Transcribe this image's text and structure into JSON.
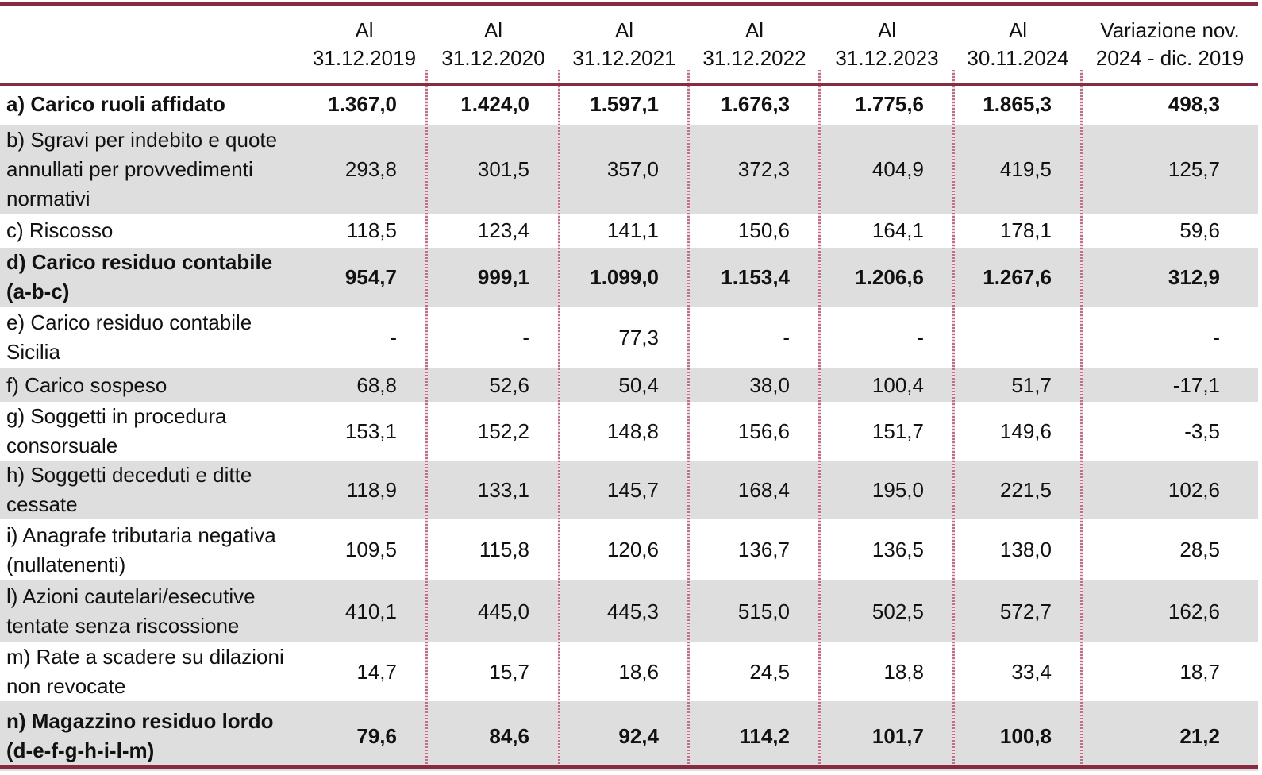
{
  "colors": {
    "maroon": "#862b42",
    "divider_pink": "#bc7089",
    "row_shade": "#dedede",
    "text": "#111111"
  },
  "table": {
    "header": {
      "columns": [
        {
          "line1": "",
          "line2": ""
        },
        {
          "line1": "Al",
          "line2": "31.12.2019"
        },
        {
          "line1": "Al",
          "line2": "31.12.2020"
        },
        {
          "line1": "Al",
          "line2": "31.12.2021"
        },
        {
          "line1": "Al",
          "line2": "31.12.2022"
        },
        {
          "line1": "Al",
          "line2": "31.12.2023"
        },
        {
          "line1": "Al",
          "line2": "30.11.2024"
        },
        {
          "line1": "Variazione nov.",
          "line2": "2024 - dic. 2019"
        }
      ]
    },
    "rows": [
      {
        "label": "a) Carico ruoli affidato",
        "bold": true,
        "shaded": false,
        "values": [
          "1.367,0",
          "1.424,0",
          "1.597,1",
          "1.676,3",
          "1.775,6",
          "1.865,3",
          "498,3"
        ]
      },
      {
        "label": "b) Sgravi per indebito e quote annullati per provvedimenti normativi",
        "bold": false,
        "shaded": true,
        "values": [
          "293,8",
          "301,5",
          "357,0",
          "372,3",
          "404,9",
          "419,5",
          "125,7"
        ]
      },
      {
        "label": "c) Riscosso",
        "bold": false,
        "shaded": false,
        "values": [
          "118,5",
          "123,4",
          "141,1",
          "150,6",
          "164,1",
          "178,1",
          "59,6"
        ]
      },
      {
        "label": "d) Carico residuo contabile (a-b-c)",
        "bold": true,
        "shaded": true,
        "values": [
          "954,7",
          "999,1",
          "1.099,0",
          "1.153,4",
          "1.206,6",
          "1.267,6",
          "312,9"
        ]
      },
      {
        "label": "e) Carico residuo contabile Sicilia",
        "bold": false,
        "shaded": false,
        "values": [
          "-",
          "-",
          "77,3",
          "-",
          "-",
          "",
          "-"
        ]
      },
      {
        "label": "f) Carico sospeso",
        "bold": false,
        "shaded": true,
        "values": [
          "68,8",
          "52,6",
          "50,4",
          "38,0",
          "100,4",
          "51,7",
          "-17,1"
        ]
      },
      {
        "label": "g) Soggetti in procedura consorsuale",
        "bold": false,
        "shaded": false,
        "values": [
          "153,1",
          "152,2",
          "148,8",
          "156,6",
          "151,7",
          "149,6",
          "-3,5"
        ]
      },
      {
        "label": "h) Soggetti deceduti e ditte cessate",
        "bold": false,
        "shaded": true,
        "values": [
          "118,9",
          "133,1",
          "145,7",
          "168,4",
          "195,0",
          "221,5",
          "102,6"
        ]
      },
      {
        "label": "i) Anagrafe tributaria negativa (nullatenenti)",
        "bold": false,
        "shaded": false,
        "values": [
          "109,5",
          "115,8",
          "120,6",
          "136,7",
          "136,5",
          "138,0",
          "28,5"
        ]
      },
      {
        "label": "l) Azioni cautelari/esecutive tentate senza riscossione",
        "bold": false,
        "shaded": true,
        "values": [
          "410,1",
          "445,0",
          "445,3",
          "515,0",
          "502,5",
          "572,7",
          "162,6"
        ]
      },
      {
        "label": "m) Rate a scadere su dilazioni non revocate",
        "bold": false,
        "shaded": false,
        "values": [
          "14,7",
          "15,7",
          "18,6",
          "24,5",
          "18,8",
          "33,4",
          "18,7"
        ]
      },
      {
        "label": "n) Magazzino residuo lordo (d-e-f-g-h-i-l-m)",
        "bold": true,
        "shaded": true,
        "values": [
          "79,6",
          "84,6",
          "92,4",
          "114,2",
          "101,7",
          "100,8",
          "21,2"
        ]
      }
    ]
  }
}
